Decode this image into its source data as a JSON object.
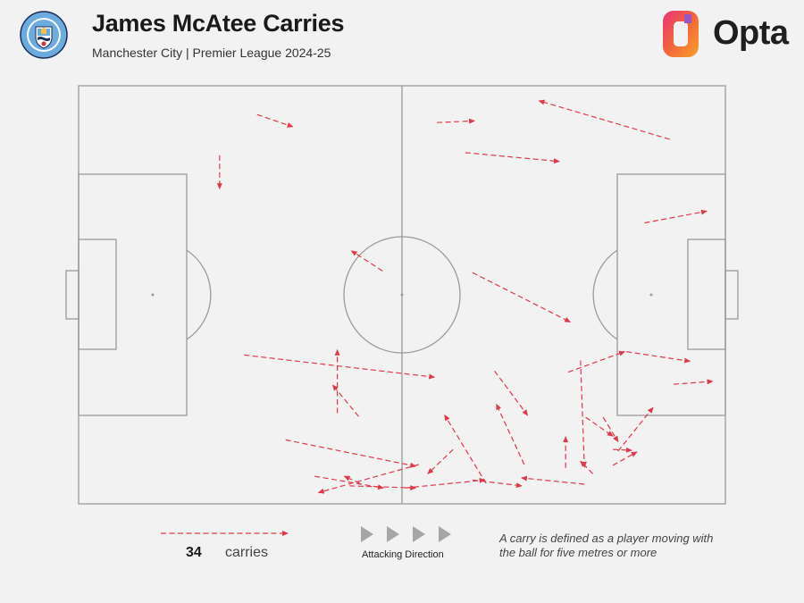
{
  "header": {
    "title": "James McAtee Carries",
    "subtitle": "Manchester City | Premier League 2024-25",
    "brand": "Opta"
  },
  "legend": {
    "count": "34",
    "label": "carries",
    "direction_label": "Attacking Direction",
    "note": "A carry is defined as a player moving with the ball for five metres or more"
  },
  "colors": {
    "carry": "#e0394a",
    "pitch_lines": "#9a9a9a",
    "background": "#f2f2f2",
    "badge_blue": "#6cabdd",
    "badge_navy": "#1c2c5b"
  },
  "chart_data": {
    "type": "pitch-carry-map",
    "pitch": {
      "length": 100,
      "width": 100,
      "attacking_direction": "left-to-right"
    },
    "series": [
      {
        "values": [
          {
            "x1": 27.6,
            "y1": 6.9,
            "x2": 33.1,
            "y2": 9.8
          },
          {
            "x1": 21.8,
            "y1": 16.6,
            "x2": 21.8,
            "y2": 24.6
          },
          {
            "x1": 55.4,
            "y1": 8.8,
            "x2": 61.2,
            "y2": 8.4
          },
          {
            "x1": 91.4,
            "y1": 12.8,
            "x2": 71.2,
            "y2": 3.6
          },
          {
            "x1": 59.8,
            "y1": 16.0,
            "x2": 74.3,
            "y2": 18.1
          },
          {
            "x1": 87.5,
            "y1": 32.8,
            "x2": 97.1,
            "y2": 30.0
          },
          {
            "x1": 47.0,
            "y1": 44.3,
            "x2": 42.2,
            "y2": 39.5
          },
          {
            "x1": 60.9,
            "y1": 44.7,
            "x2": 76.0,
            "y2": 56.5
          },
          {
            "x1": 25.6,
            "y1": 64.4,
            "x2": 55.0,
            "y2": 69.7
          },
          {
            "x1": 40.0,
            "y1": 78.3,
            "x2": 40.0,
            "y2": 63.2
          },
          {
            "x1": 43.3,
            "y1": 79.1,
            "x2": 39.3,
            "y2": 71.6
          },
          {
            "x1": 64.3,
            "y1": 68.2,
            "x2": 69.4,
            "y2": 78.8
          },
          {
            "x1": 75.7,
            "y1": 68.5,
            "x2": 84.4,
            "y2": 63.6
          },
          {
            "x1": 84.7,
            "y1": 63.6,
            "x2": 94.5,
            "y2": 65.9
          },
          {
            "x1": 92.0,
            "y1": 71.4,
            "x2": 98.0,
            "y2": 70.7
          },
          {
            "x1": 77.6,
            "y1": 65.7,
            "x2": 78.2,
            "y2": 91.2
          },
          {
            "x1": 78.4,
            "y1": 79.3,
            "x2": 82.6,
            "y2": 83.8
          },
          {
            "x1": 81.1,
            "y1": 79.3,
            "x2": 83.4,
            "y2": 85.1
          },
          {
            "x1": 82.6,
            "y1": 87.0,
            "x2": 85.5,
            "y2": 87.2
          },
          {
            "x1": 82.6,
            "y1": 90.8,
            "x2": 86.3,
            "y2": 87.6
          },
          {
            "x1": 83.4,
            "y1": 87.4,
            "x2": 88.8,
            "y2": 77.0
          },
          {
            "x1": 75.3,
            "y1": 91.4,
            "x2": 75.3,
            "y2": 84.0
          },
          {
            "x1": 79.5,
            "y1": 92.8,
            "x2": 77.6,
            "y2": 89.8
          },
          {
            "x1": 68.9,
            "y1": 90.6,
            "x2": 64.6,
            "y2": 76.2
          },
          {
            "x1": 63.0,
            "y1": 95.1,
            "x2": 56.6,
            "y2": 78.8
          },
          {
            "x1": 57.9,
            "y1": 87.0,
            "x2": 54.0,
            "y2": 92.8
          },
          {
            "x1": 32.0,
            "y1": 84.7,
            "x2": 52.1,
            "y2": 91.0
          },
          {
            "x1": 52.6,
            "y1": 90.6,
            "x2": 37.1,
            "y2": 97.3
          },
          {
            "x1": 36.5,
            "y1": 93.4,
            "x2": 47.1,
            "y2": 96.2
          },
          {
            "x1": 41.9,
            "y1": 95.7,
            "x2": 52.1,
            "y2": 96.2
          },
          {
            "x1": 50.5,
            "y1": 96.2,
            "x2": 62.8,
            "y2": 94.3
          },
          {
            "x1": 60.9,
            "y1": 94.3,
            "x2": 68.5,
            "y2": 95.7
          },
          {
            "x1": 78.2,
            "y1": 95.3,
            "x2": 68.5,
            "y2": 93.8
          },
          {
            "x1": 43.5,
            "y1": 95.1,
            "x2": 41.1,
            "y2": 93.4
          }
        ]
      }
    ]
  }
}
